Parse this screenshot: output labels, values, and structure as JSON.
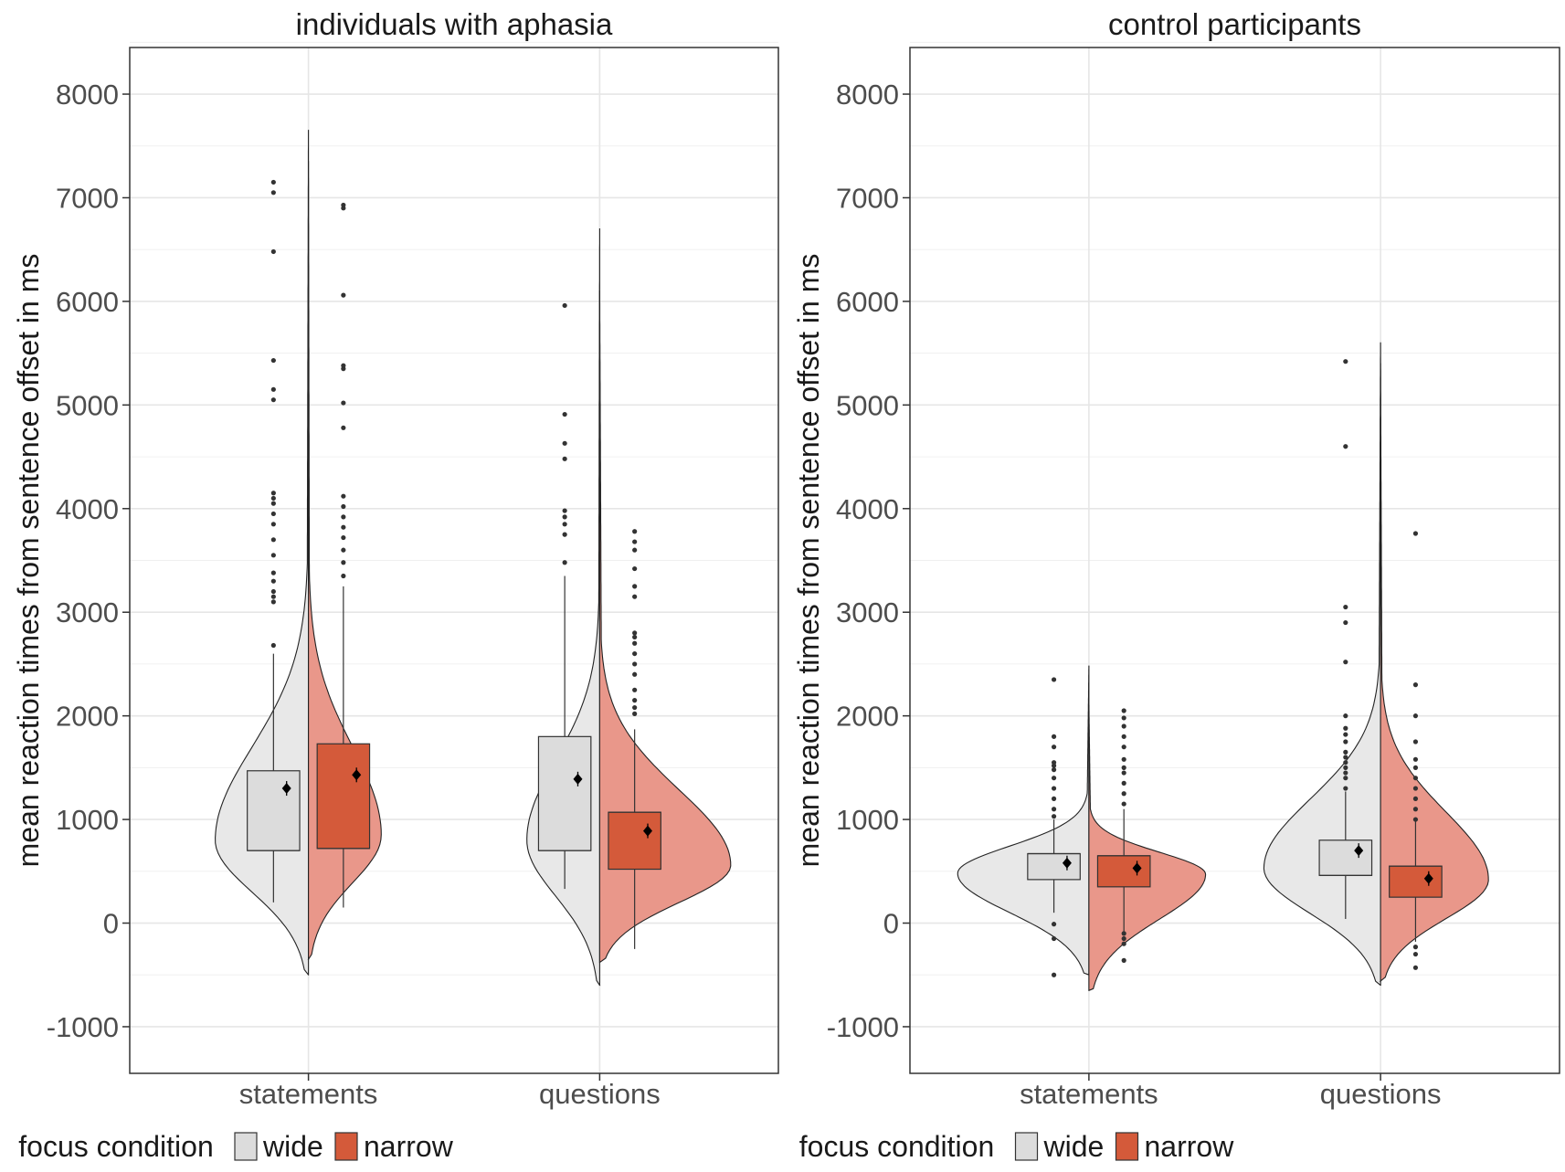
{
  "chart_data": {
    "type": "split-violin-boxplot",
    "ylabel": "mean reaction times from sentence offset in ms",
    "ylim": [
      -1450,
      8450
    ],
    "yticks": [
      -1000,
      0,
      1000,
      2000,
      3000,
      4000,
      5000,
      6000,
      7000,
      8000
    ],
    "yticks_labels": [
      "-1000",
      "0",
      "1000",
      "2000",
      "3000",
      "4000",
      "5000",
      "6000",
      "7000",
      "8000"
    ],
    "categories": [
      "statements",
      "questions"
    ],
    "legend": {
      "title": "focus condition",
      "position": "bottom",
      "entries": [
        {
          "label": "wide",
          "color": "#dcdcdc"
        },
        {
          "label": "narrow",
          "color": "#d45a3a"
        }
      ]
    },
    "colors": {
      "wide_violin": "#e8e8e8",
      "narrow_violin": "#e9978a",
      "wide_box": "#dcdcdc",
      "narrow_box": "#d45a3a",
      "grid": "#e6e6e6"
    },
    "panels": [
      {
        "title": "individuals with aphasia",
        "groups": [
          {
            "category": "statements",
            "wide": {
              "violin": {
                "min": -500,
                "max": 7650,
                "mode": 800,
                "width": 0.32
              },
              "box": {
                "q1": 700,
                "median": 700,
                "q3": 1470,
                "whisker_low": 200,
                "whisker_high": 2600
              },
              "mean": 1300,
              "outliers": [
                2680,
                3100,
                3150,
                3200,
                3300,
                3380,
                3550,
                3700,
                3850,
                3950,
                4050,
                4100,
                4150,
                5050,
                5150,
                5430,
                6480,
                7050,
                7150
              ]
            },
            "narrow": {
              "violin": {
                "min": -350,
                "max": 7350,
                "mode": 850,
                "width": 0.25
              },
              "box": {
                "q1": 720,
                "median": 720,
                "q3": 1730,
                "whisker_low": 150,
                "whisker_high": 3250
              },
              "mean": 1430,
              "outliers": [
                3350,
                3480,
                3600,
                3720,
                3820,
                3920,
                4020,
                4120,
                4780,
                5020,
                5350,
                5380,
                6060,
                6900,
                6930
              ]
            }
          },
          {
            "category": "questions",
            "wide": {
              "violin": {
                "min": -600,
                "max": 6700,
                "mode": 800,
                "width": 0.25
              },
              "box": {
                "q1": 700,
                "median": 700,
                "q3": 1800,
                "whisker_low": 330,
                "whisker_high": 3350
              },
              "mean": 1390,
              "outliers": [
                3480,
                3750,
                3850,
                3920,
                3980,
                4480,
                4630,
                4910,
                5960
              ]
            },
            "narrow": {
              "violin": {
                "min": -380,
                "max": 6100,
                "mode": 560,
                "width": 0.45
              },
              "box": {
                "q1": 520,
                "median": 1070,
                "q3": 1070,
                "whisker_low": -250,
                "whisker_high": 1870
              },
              "mean": 890,
              "outliers": [
                2020,
                2080,
                2150,
                2250,
                2400,
                2500,
                2600,
                2700,
                2760,
                2800,
                3150,
                3250,
                3420,
                3600,
                3680,
                3780
              ]
            }
          }
        ]
      },
      {
        "title": "control participants",
        "groups": [
          {
            "category": "statements",
            "wide": {
              "violin": {
                "min": -500,
                "max": 2480,
                "mode": 480,
                "width": 0.45
              },
              "box": {
                "q1": 420,
                "median": 670,
                "q3": 670,
                "whisker_low": 100,
                "whisker_high": 1000
              },
              "mean": 580,
              "outliers": [
                -500,
                -150,
                -10,
                1030,
                1100,
                1200,
                1300,
                1400,
                1480,
                1520,
                1550,
                1700,
                1800,
                2350
              ]
            },
            "narrow": {
              "violin": {
                "min": -650,
                "max": 2100,
                "mode": 470,
                "width": 0.4
              },
              "box": {
                "q1": 350,
                "median": 650,
                "q3": 650,
                "whisker_low": -80,
                "whisker_high": 1100
              },
              "mean": 530,
              "outliers": [
                -360,
                -200,
                -150,
                -100,
                1150,
                1250,
                1350,
                1450,
                1500,
                1580,
                1700,
                1800,
                1900,
                1980,
                2050
              ]
            }
          },
          {
            "category": "questions",
            "wide": {
              "violin": {
                "min": -600,
                "max": 5600,
                "mode": 530,
                "width": 0.4
              },
              "box": {
                "q1": 460,
                "median": 460,
                "q3": 800,
                "whisker_low": 40,
                "whisker_high": 1270
              },
              "mean": 700,
              "outliers": [
                1300,
                1400,
                1450,
                1500,
                1550,
                1600,
                1650,
                1750,
                1820,
                1880,
                2000,
                2520,
                2900,
                3050,
                4600,
                5420
              ]
            },
            "narrow": {
              "violin": {
                "min": -560,
                "max": 5400,
                "mode": 420,
                "width": 0.37
              },
              "box": {
                "q1": 250,
                "median": 550,
                "q3": 550,
                "whisker_low": -180,
                "whisker_high": 1000
              },
              "mean": 430,
              "outliers": [
                -430,
                -300,
                -230,
                1000,
                1100,
                1200,
                1300,
                1400,
                1500,
                1580,
                1750,
                2000,
                2300,
                3760
              ]
            }
          }
        ]
      }
    ]
  }
}
